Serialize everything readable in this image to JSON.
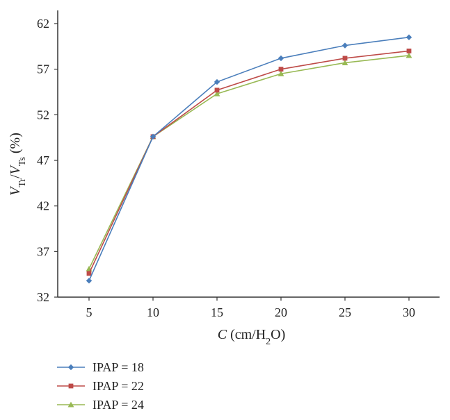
{
  "chart_data": {
    "type": "line",
    "x": [
      5,
      10,
      15,
      20,
      25,
      30
    ],
    "x_tick_labels": [
      "5",
      "10",
      "15",
      "20",
      "25",
      "30"
    ],
    "y_tick_labels": [
      "32",
      "37",
      "42",
      "47",
      "52",
      "57",
      "62"
    ],
    "ylim": [
      32,
      62
    ],
    "xlabel_var": "C",
    "xlabel_unit_open": " (cm/H",
    "xlabel_unit_sub": "2",
    "xlabel_unit_close": "O)",
    "ylabel_v1": "V",
    "ylabel_v1_sub": "Tr",
    "ylabel_slash": "/",
    "ylabel_v2": "V",
    "ylabel_v2_sub": "Ts",
    "ylabel_unit": " (%)",
    "grid": false,
    "legend_position": "bottom-left",
    "series": [
      {
        "name": "IPAP = 18",
        "color": "#4a7ebb",
        "marker": "diamond",
        "values": [
          33.8,
          49.6,
          55.6,
          58.2,
          59.6,
          60.5
        ]
      },
      {
        "name": "IPAP = 22",
        "color": "#be4b48",
        "marker": "square",
        "values": [
          34.6,
          49.6,
          54.7,
          57.0,
          58.2,
          59.0
        ]
      },
      {
        "name": "IPAP = 24",
        "color": "#98b954",
        "marker": "triangle",
        "values": [
          35.1,
          49.6,
          54.3,
          56.5,
          57.7,
          58.5
        ]
      }
    ]
  }
}
